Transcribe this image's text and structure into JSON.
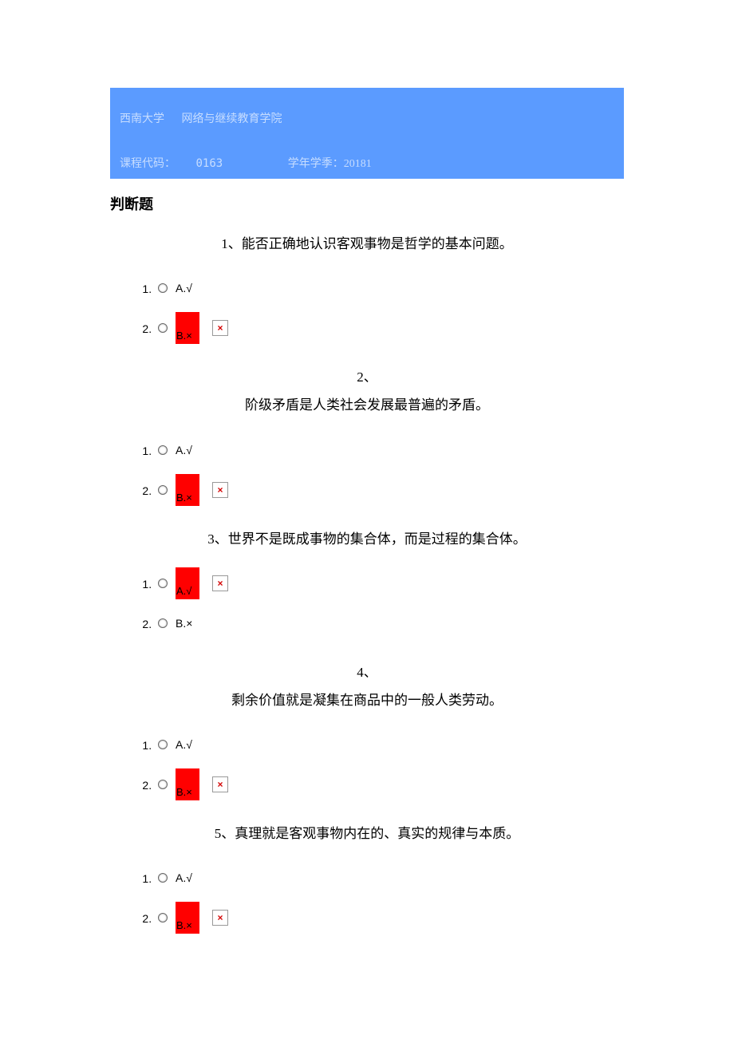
{
  "header": {
    "university": "西南大学",
    "school": "网络与继续教育学院",
    "course_code_label": "课程代码：",
    "course_code": "0163",
    "term_label": "学年学季：",
    "term": "20181"
  },
  "colors": {
    "header_bg": "#5b9bff",
    "header_text": "#c7ddff",
    "highlight_bg": "#ff0000",
    "broken_x": "#d40000",
    "page_bg": "#ffffff"
  },
  "section_title": "判断题",
  "option_true": "A.√",
  "option_false": "B.×",
  "questions": [
    {
      "num": "1、",
      "text": "能否正确地认识客观事物是哲学的基本问题。",
      "split": false,
      "highlighted": "B"
    },
    {
      "num": "2、",
      "text": "阶级矛盾是人类社会发展最普遍的矛盾。",
      "split": true,
      "highlighted": "B"
    },
    {
      "num": "3、",
      "text": "世界不是既成事物的集合体，而是过程的集合体。",
      "split": false,
      "highlighted": "A"
    },
    {
      "num": "4、",
      "text": "剩余价值就是凝集在商品中的一般人类劳动。",
      "split": true,
      "highlighted": "B"
    },
    {
      "num": "5、",
      "text": "真理就是客观事物内在的、真实的规律与本质。",
      "split": false,
      "highlighted": "B"
    }
  ]
}
